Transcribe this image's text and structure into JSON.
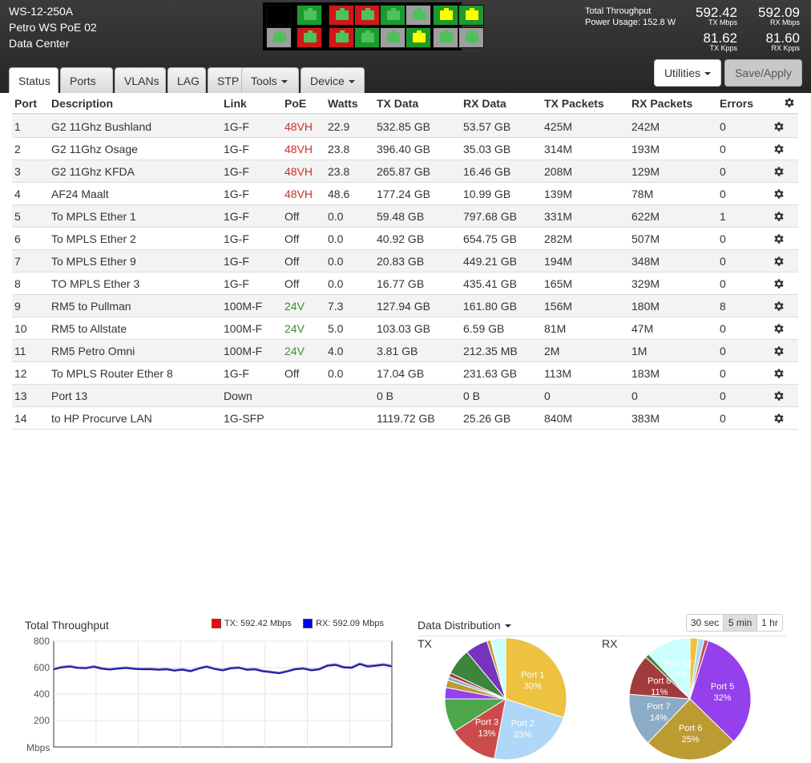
{
  "device": {
    "model": "WS-12-250A",
    "name": "Petro WS PoE 02",
    "location": "Data Center"
  },
  "port_panel": {
    "top": [
      "black",
      "green",
      "red-green",
      "red-green",
      "green",
      "gray-green",
      "yellow",
      "yellow"
    ],
    "bottom": [
      "gray-green",
      "red-green",
      "red-green",
      "green",
      "gray-green",
      "yellow",
      "gray-green",
      "gray-green"
    ]
  },
  "stats": {
    "total_throughput_label": "Total Throughput",
    "power_usage": "Power Usage: 152.8 W",
    "tx_mbps": "592.42",
    "tx_mbps_unit": "TX Mbps",
    "rx_mbps": "592.09",
    "rx_mbps_unit": "RX Mbps",
    "tx_kpps": "81.62",
    "tx_kpps_unit": "TX Kpps",
    "rx_kpps": "81.60",
    "rx_kpps_unit": "RX Kpps"
  },
  "tabs": [
    "Status",
    "Ports",
    "VLANs",
    "LAG",
    "STP",
    "Tools",
    "Device"
  ],
  "buttons": {
    "utilities": "Utilities",
    "save_apply": "Save/Apply"
  },
  "table": {
    "headers": [
      "Port",
      "Description",
      "Link",
      "PoE",
      "Watts",
      "TX Data",
      "RX Data",
      "TX Packets",
      "RX Packets",
      "Errors"
    ],
    "rows": [
      [
        "1",
        "G2 11Ghz Bushland",
        "1G-F",
        "48VH",
        "22.9",
        "532.85 GB",
        "53.57 GB",
        "425M",
        "242M",
        "0"
      ],
      [
        "2",
        "G2 11Ghz Osage",
        "1G-F",
        "48VH",
        "23.8",
        "396.40 GB",
        "35.03 GB",
        "314M",
        "193M",
        "0"
      ],
      [
        "3",
        "G2 11Ghz KFDA",
        "1G-F",
        "48VH",
        "23.8",
        "265.87 GB",
        "16.46 GB",
        "208M",
        "129M",
        "0"
      ],
      [
        "4",
        "AF24 Maalt",
        "1G-F",
        "48VH",
        "48.6",
        "177.24 GB",
        "10.99 GB",
        "139M",
        "78M",
        "0"
      ],
      [
        "5",
        "To MPLS Ether 1",
        "1G-F",
        "Off",
        "0.0",
        "59.48 GB",
        "797.68 GB",
        "331M",
        "622M",
        "1"
      ],
      [
        "6",
        "To MPLS Ether 2",
        "1G-F",
        "Off",
        "0.0",
        "40.92 GB",
        "654.75 GB",
        "282M",
        "507M",
        "0"
      ],
      [
        "7",
        "To MPLS Ether 9",
        "1G-F",
        "Off",
        "0.0",
        "20.83 GB",
        "449.21 GB",
        "194M",
        "348M",
        "0"
      ],
      [
        "8",
        "TO MPLS Ether 3",
        "1G-F",
        "Off",
        "0.0",
        "16.77 GB",
        "435.41 GB",
        "165M",
        "329M",
        "0"
      ],
      [
        "9",
        "RM5 to Pullman",
        "100M-F",
        "24V",
        "7.3",
        "127.94 GB",
        "161.80 GB",
        "156M",
        "180M",
        "8"
      ],
      [
        "10",
        "RM5 to Allstate",
        "100M-F",
        "24V",
        "5.0",
        "103.03 GB",
        "6.59 GB",
        "81M",
        "47M",
        "0"
      ],
      [
        "11",
        "RM5 Petro Omni",
        "100M-F",
        "24V",
        "4.0",
        "3.81 GB",
        "212.35 MB",
        "2M",
        "1M",
        "0"
      ],
      [
        "12",
        "To MPLS Router Ether 8",
        "1G-F",
        "Off",
        "0.0",
        "17.04 GB",
        "231.63 GB",
        "113M",
        "183M",
        "0"
      ],
      [
        "13",
        "Port 13",
        "Down",
        "",
        "",
        "0 B",
        "0 B",
        "0",
        "0",
        "0"
      ],
      [
        "14",
        "to HP Procurve LAN",
        "1G-SFP",
        "",
        "",
        "1119.72 GB",
        "25.26 GB",
        "840M",
        "383M",
        "0"
      ]
    ]
  },
  "throughput_chart": {
    "title": "Total Throughput",
    "legend_tx": "TX: 592.42 Mbps",
    "legend_rx": "RX: 592.09 Mbps",
    "tx_color": "#ff0000",
    "rx_color": "#0000ff",
    "y_unit": "Mbps",
    "y_ticks": [
      "800",
      "600",
      "400",
      "200"
    ]
  },
  "distribution": {
    "title": "Data Distribution",
    "tx_label": "TX",
    "rx_label": "RX",
    "time_buttons": [
      "30 sec",
      "5 min",
      "1 hr"
    ],
    "active_time": "5 min"
  },
  "chart_data": [
    {
      "type": "line",
      "title": "Total Throughput",
      "ylabel": "Mbps",
      "ylim": [
        0,
        800
      ],
      "series": [
        {
          "name": "TX: 592.42 Mbps",
          "values": [
            590,
            605,
            612,
            600,
            598,
            610,
            595,
            588,
            596,
            600,
            594,
            590,
            592,
            586,
            590,
            580,
            588,
            575,
            596,
            610,
            592,
            582,
            598,
            602,
            586,
            590,
            575,
            568,
            560,
            574,
            590,
            596,
            582,
            590,
            618,
            624,
            605,
            602,
            630,
            612,
            618,
            625,
            612
          ]
        },
        {
          "name": "RX: 592.09 Mbps",
          "values": [
            586,
            602,
            608,
            597,
            595,
            606,
            591,
            585,
            593,
            597,
            590,
            587,
            588,
            583,
            587,
            577,
            584,
            572,
            592,
            606,
            589,
            579,
            594,
            598,
            583,
            586,
            572,
            565,
            557,
            571,
            587,
            593,
            579,
            587,
            614,
            620,
            602,
            598,
            626,
            608,
            614,
            621,
            608
          ]
        }
      ]
    },
    {
      "type": "pie",
      "title": "TX",
      "slices": [
        {
          "label": "Port 1",
          "value": 30,
          "color": "#edc240"
        },
        {
          "label": "Port 2",
          "value": 23,
          "color": "#afd8f8"
        },
        {
          "label": "Port 3",
          "value": 13,
          "color": "#cb4b4b"
        },
        {
          "label": "Port 4",
          "value": 9,
          "color": "#4da74d"
        },
        {
          "label": "Port 5",
          "value": 3,
          "color": "#9440ed"
        },
        {
          "label": "Port 6",
          "value": 2,
          "color": "#bd9b33"
        },
        {
          "label": "Port 7",
          "value": 1,
          "color": "#8cacc6"
        },
        {
          "label": "Port 8",
          "value": 1,
          "color": "#a23c3c"
        },
        {
          "label": "Port 9",
          "value": 7,
          "color": "#3d853d"
        },
        {
          "label": "Port 10",
          "value": 6,
          "color": "#7633bd"
        },
        {
          "label": "Port 12",
          "value": 1,
          "color": "#c79e2a"
        },
        {
          "label": "Port 14",
          "value": 4,
          "color": "#ccffff"
        }
      ]
    },
    {
      "type": "pie",
      "title": "RX",
      "slices": [
        {
          "label": "Port 1",
          "value": 2,
          "color": "#edc240"
        },
        {
          "label": "Port 2",
          "value": 1.5,
          "color": "#afd8f8"
        },
        {
          "label": "Port 3",
          "value": 1,
          "color": "#cb4b4b"
        },
        {
          "label": "Port 5",
          "value": 30,
          "color": "#9440ed"
        },
        {
          "label": "Port 6",
          "value": 23,
          "color": "#bd9b33"
        },
        {
          "label": "Port 7",
          "value": 13,
          "color": "#8cacc6"
        },
        {
          "label": "Port 8",
          "value": 10,
          "color": "#a23c3c"
        },
        {
          "label": "Port 9",
          "value": 1,
          "color": "#3d853d"
        },
        {
          "label": "Port 12",
          "value": 11,
          "color": "#ccffff"
        }
      ]
    }
  ]
}
